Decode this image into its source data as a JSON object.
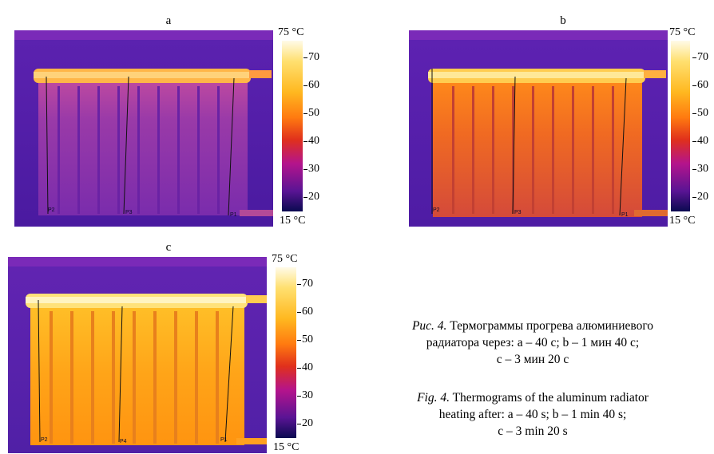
{
  "panels": [
    {
      "letter": "a",
      "probes": [
        "P2",
        "P3",
        "P1"
      ]
    },
    {
      "letter": "b",
      "probes": [
        "P2",
        "P3",
        "P1"
      ]
    },
    {
      "letter": "c",
      "probes": [
        "P2",
        "P4",
        "P1"
      ]
    }
  ],
  "scale": {
    "top_label": "75 °C",
    "bottom_label": "15 °C",
    "ticks": [
      "70",
      "60",
      "50",
      "40",
      "30",
      "20"
    ]
  },
  "caption": {
    "ru_label": "Рис. 4.",
    "ru_line1": "Термограммы прогрева алюминиевого",
    "ru_line2": "радиатора через: a – 40 с; b – 1 мин 40 с;",
    "ru_line3": "c – 3 мин 20 с",
    "en_label": "Fig. 4.",
    "en_line1": "Thermograms of the aluminum radiator",
    "en_line2": "heating after: a – 40 s; b – 1 min 40 s;",
    "en_line3": "c – 3 min 20 s"
  },
  "colors": {
    "background_cold": "#5a1ea8",
    "scale_gradient": [
      "#fffbe8",
      "#ffd23a",
      "#ff8a00",
      "#e8301c",
      "#b8148a",
      "#4a1290",
      "#0a0a50"
    ]
  }
}
